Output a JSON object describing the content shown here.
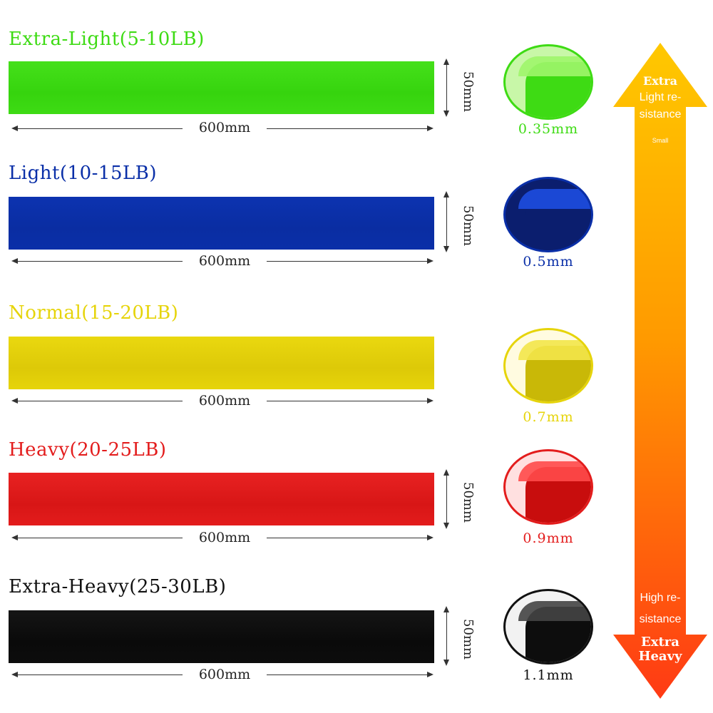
{
  "colors": {
    "extra_light": "#3edb14",
    "light": "#0a2fa8",
    "normal": "#e6d40a",
    "heavy": "#e31c1c",
    "extra_heavy": "#0d0d0d",
    "arrow_top": "#ffc800",
    "arrow_bottom": "#ff3a14"
  },
  "bands": [
    {
      "title": "Extra-Light(5-10LB)",
      "length": "600mm",
      "width": "50mm",
      "thickness": "0.35mm"
    },
    {
      "title": "Light(10-15LB)",
      "length": "600mm",
      "width": "50mm",
      "thickness": "0.5mm"
    },
    {
      "title": "Normal(15-20LB)",
      "length": "600mm",
      "width": "",
      "thickness": "0.7mm"
    },
    {
      "title": "Heavy(20-25LB)",
      "length": "600mm",
      "width": "50mm",
      "thickness": "0.9mm"
    },
    {
      "title": "Extra-Heavy(25-30LB)",
      "length": "600mm",
      "width": "50mm",
      "thickness": "1.1mm"
    }
  ],
  "scale": {
    "top_extra": "Extra",
    "top_line1": "Light re-",
    "top_line2": "sistance",
    "small": "Small",
    "bottom_line1": "High re-",
    "bottom_line2": "sistance",
    "bottom_extra1": "Extra",
    "bottom_extra2": "Heavy"
  }
}
